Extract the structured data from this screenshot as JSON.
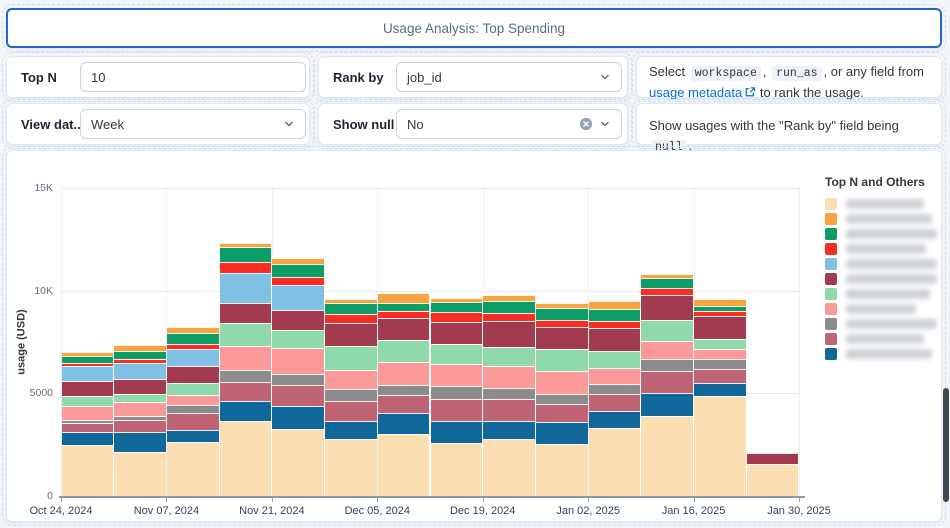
{
  "title": "Usage Analysis: Top Spending",
  "controls": {
    "top_n": {
      "label": "Top N",
      "value": "10"
    },
    "rank_by": {
      "label": "Rank by",
      "value": "job_id"
    },
    "view_date": {
      "label": "View dat...",
      "value": "Week"
    },
    "show_null": {
      "label": "Show null",
      "value": "No"
    }
  },
  "help1": {
    "t1": "Select ",
    "c1": "workspace",
    "t2": ", ",
    "c2": "run_as",
    "t3": ", or any field from ",
    "link": "usage metadata",
    "t4": " to rank the usage."
  },
  "help2": {
    "t1": "Show usages with the \"Rank by\" field being ",
    "c1": "null",
    "t2": "."
  },
  "chart_data": {
    "type": "bar",
    "stacked": true,
    "legend_title": "Top N and Others",
    "legend_position": "right",
    "legend_labels_redacted": true,
    "ylabel": "usage (USD)",
    "ylim": [
      0,
      15000
    ],
    "ytick_values": [
      0,
      5000,
      10000,
      15000
    ],
    "ytick_labels": [
      "0",
      "5000",
      "10K",
      "15K"
    ],
    "x_tick_labels": [
      "Oct 24, 2024",
      "Nov 07, 2024",
      "Nov 21, 2024",
      "Dec 05, 2024",
      "Dec 19, 2024",
      "Jan 02, 2025",
      "Jan 16, 2025",
      "Jan 30, 2025"
    ],
    "categories": [
      "Oct 24, 2024",
      "Oct 31, 2024",
      "Nov 07, 2024",
      "Nov 14, 2024",
      "Nov 21, 2024",
      "Nov 28, 2024",
      "Dec 05, 2024",
      "Dec 12, 2024",
      "Dec 19, 2024",
      "Dec 26, 2024",
      "Jan 02, 2025",
      "Jan 09, 2025",
      "Jan 16, 2025",
      "Jan 23, 2025"
    ],
    "grid": true,
    "stack_order": [
      0,
      10,
      9,
      8,
      7,
      6,
      5,
      4,
      3,
      2,
      1
    ],
    "series": [
      {
        "name": "redacted-1",
        "color": "#FBDFB2",
        "values": [
          2500,
          2150,
          2650,
          3650,
          3250,
          2760,
          3000,
          2600,
          2760,
          2550,
          3330,
          3900,
          4870,
          1550
        ]
      },
      {
        "name": "redacted-2",
        "color": "#F9A43F",
        "values": [
          170,
          330,
          290,
          200,
          290,
          160,
          490,
          210,
          290,
          230,
          410,
          210,
          320,
          0
        ]
      },
      {
        "name": "redacted-3",
        "color": "#0D9D66",
        "values": [
          360,
          360,
          550,
          730,
          650,
          570,
          410,
          490,
          620,
          580,
          570,
          490,
          240,
          0
        ]
      },
      {
        "name": "redacted-4",
        "color": "#FA2D25",
        "values": [
          130,
          200,
          230,
          540,
          400,
          410,
          330,
          490,
          390,
          330,
          320,
          320,
          240,
          0
        ]
      },
      {
        "name": "redacted-5",
        "color": "#7FC0E5",
        "values": [
          730,
          780,
          840,
          1450,
          1180,
          0,
          0,
          0,
          0,
          0,
          0,
          0,
          0,
          0
        ]
      },
      {
        "name": "redacted-6",
        "color": "#A23A50",
        "values": [
          730,
          730,
          840,
          970,
          1000,
          1140,
          1050,
          1060,
          1230,
          1090,
          1140,
          1200,
          1140,
          530
        ]
      },
      {
        "name": "redacted-7",
        "color": "#8FD9AB",
        "values": [
          520,
          410,
          580,
          1100,
          890,
          1140,
          1090,
          970,
          930,
          1060,
          810,
          1040,
          490,
          0
        ]
      },
      {
        "name": "redacted-8",
        "color": "#FB9A99",
        "values": [
          650,
          680,
          490,
          1200,
          1250,
          970,
          1100,
          1060,
          1060,
          1100,
          810,
          890,
          490,
          0
        ]
      },
      {
        "name": "redacted-9",
        "color": "#8C8C8C",
        "values": [
          160,
          160,
          390,
          570,
          540,
          570,
          490,
          650,
          570,
          490,
          490,
          570,
          490,
          0
        ]
      },
      {
        "name": "redacted-10",
        "color": "#BE6475",
        "values": [
          450,
          620,
          810,
          900,
          1000,
          970,
          890,
          1060,
          1060,
          880,
          810,
          1050,
          650,
          0
        ]
      },
      {
        "name": "redacted-11",
        "color": "#10689A",
        "values": [
          600,
          950,
          580,
          1000,
          1150,
          890,
          1050,
          1060,
          890,
          1070,
          810,
          1140,
          650,
          0
        ]
      }
    ]
  },
  "legend": {
    "title": "Top N and Others",
    "items": [
      {
        "color": "#FBDFB2",
        "label_redacted": true,
        "smudge_width": 78
      },
      {
        "color": "#F9A43F",
        "label_redacted": true,
        "smudge_width": 86
      },
      {
        "color": "#0D9D66",
        "label_redacted": true,
        "smudge_width": 100
      },
      {
        "color": "#FA2D25",
        "label_redacted": true,
        "smudge_width": 80
      },
      {
        "color": "#7FC0E5",
        "label_redacted": true,
        "smudge_width": 92
      },
      {
        "color": "#A23A50",
        "label_redacted": true,
        "smudge_width": 98
      },
      {
        "color": "#8FD9AB",
        "label_redacted": true,
        "smudge_width": 84
      },
      {
        "color": "#FB9A99",
        "label_redacted": true,
        "smudge_width": 70
      },
      {
        "color": "#8C8C8C",
        "label_redacted": true,
        "smudge_width": 92
      },
      {
        "color": "#BE6475",
        "label_redacted": true,
        "smudge_width": 78
      },
      {
        "color": "#10689A",
        "label_redacted": true,
        "smudge_width": 86
      }
    ]
  },
  "colors": {
    "accent_blue": "#2268d1",
    "link_blue": "#0e6dcc",
    "title_text": "#5a6d87"
  }
}
